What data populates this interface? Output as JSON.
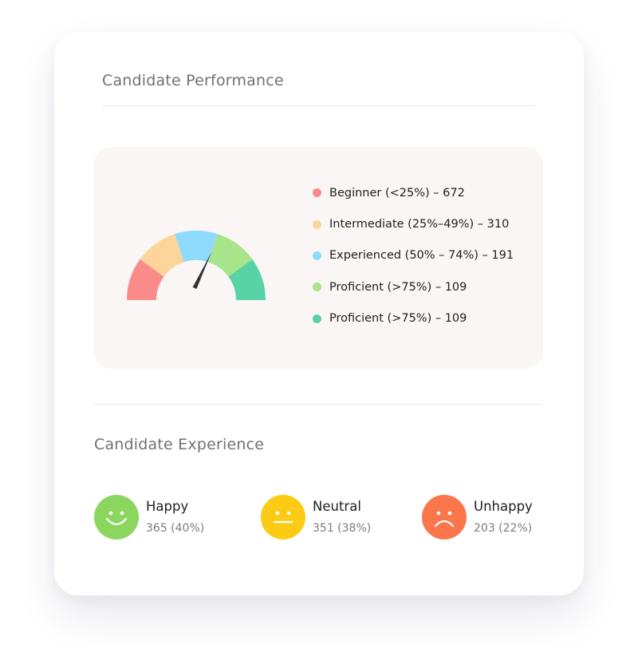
{
  "performance": {
    "title": "Candidate Performance",
    "gauge_needle_fraction": 0.64,
    "legend": [
      {
        "label": "Beginner (<25%) – 672",
        "color": "#f98b8b"
      },
      {
        "label": "Intermediate (25%–49%) – 310",
        "color": "#fdd59a"
      },
      {
        "label": "Experienced (50% – 74%) – 191",
        "color": "#8fdbfd"
      },
      {
        "label": "Proficient (>75%) – 109",
        "color": "#a7e48a"
      },
      {
        "label": "Proficient (>75%) – 109",
        "color": "#58d3a6"
      }
    ]
  },
  "experience": {
    "title": "Candidate Experience",
    "items": [
      {
        "label": "Happy",
        "stat": "365 (40%)",
        "color": "#8ad65e",
        "icon": "happy-face-icon"
      },
      {
        "label": "Neutral",
        "stat": "351 (38%)",
        "color": "#fccb16",
        "icon": "neutral-face-icon"
      },
      {
        "label": "Unhappy",
        "stat": "203 (22%)",
        "color": "#fb774b",
        "icon": "unhappy-face-icon"
      }
    ]
  }
}
